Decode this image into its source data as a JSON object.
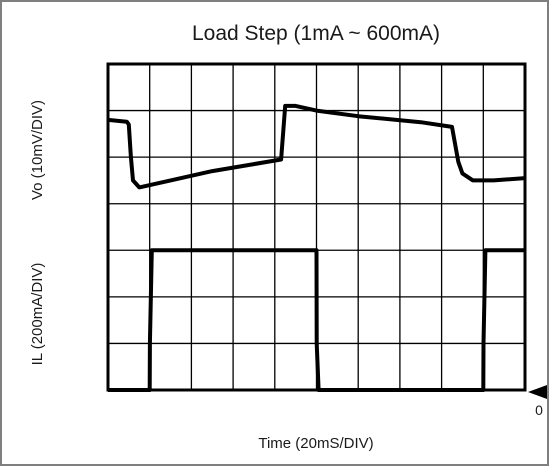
{
  "chart_data": {
    "type": "line",
    "title": "Load Step (1mA ~ 600mA)",
    "xlabel": "Time (20mS/DIV)",
    "ylabel_top": "Vo (10mV/DIV)",
    "ylabel_bottom": "IL (200mA/DIV)",
    "zero_marker_label": "0",
    "grid": {
      "divisions_x": 10,
      "divisions_y": 7
    },
    "x_range": [
      0,
      200
    ],
    "x_unit": "ms",
    "series": [
      {
        "name": "Vo",
        "units": "mV",
        "y_range": [
          -40,
          30
        ],
        "x": [
          0,
          9,
          10,
          11,
          12,
          15,
          30,
          50,
          70,
          83,
          85,
          90,
          100,
          120,
          150,
          165,
          168,
          170,
          175,
          185,
          200
        ],
        "y": [
          18,
          17.6,
          17,
          10,
          5,
          3.5,
          5,
          7,
          8.5,
          9.5,
          21,
          21,
          20,
          18.8,
          17.5,
          16.5,
          9,
          6.5,
          5,
          5,
          5.5
        ]
      },
      {
        "name": "IL",
        "units": "mA",
        "y_range": [
          0,
          1400
        ],
        "x": [
          0,
          20,
          20.1,
          21,
          100,
          100.1,
          101,
          180,
          180.1,
          181,
          200
        ],
        "y": [
          0,
          0,
          200,
          600,
          600,
          200,
          0,
          0,
          200,
          600,
          600
        ]
      }
    ]
  }
}
